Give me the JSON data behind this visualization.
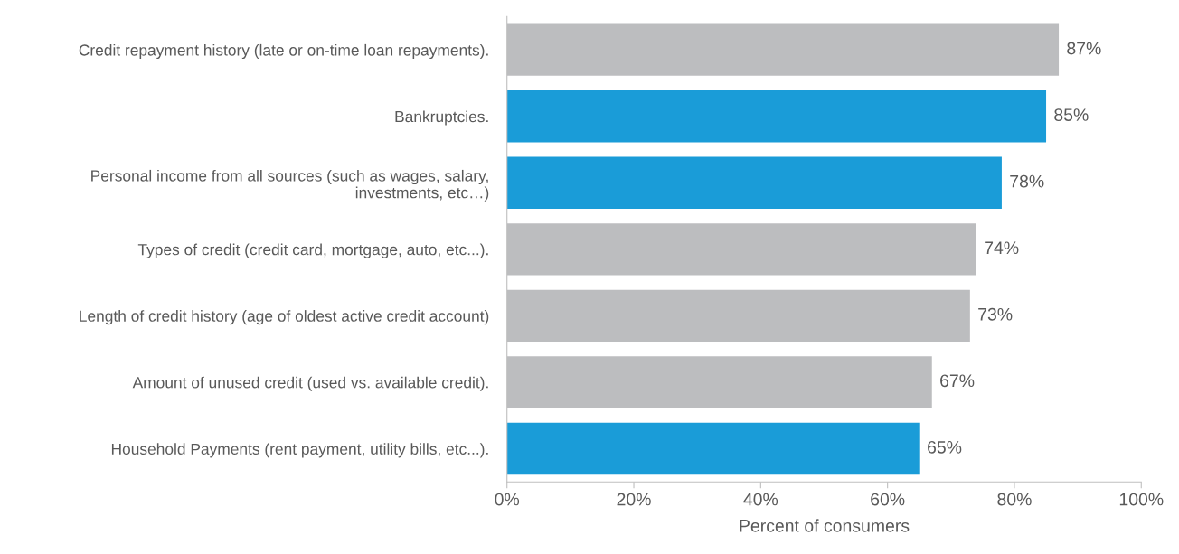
{
  "chart_data": {
    "type": "bar",
    "orientation": "horizontal",
    "xlabel": "Percent of consumers",
    "categories": [
      "Credit repayment history (late or on-time loan repayments).",
      "Bankruptcies.",
      "Personal income from all sources (such as wages, salary,\ninvestments, etc…)",
      "Types of credit (credit card, mortgage, auto, etc...).",
      "Length of credit history (age of oldest active credit account)",
      "Amount of unused credit (used vs. available credit).",
      "Household Payments (rent payment, utility bills, etc...)."
    ],
    "values": [
      87,
      85,
      78,
      74,
      73,
      67,
      65
    ],
    "colors": [
      "#bcbdbf",
      "#1a9cd8",
      "#1a9cd8",
      "#bcbdbf",
      "#bcbdbf",
      "#bcbdbf",
      "#1a9cd8"
    ],
    "value_labels": [
      "87%",
      "85%",
      "78%",
      "74%",
      "73%",
      "67%",
      "65%"
    ],
    "xlim": [
      0,
      100
    ],
    "xticks": [
      {
        "value": 0,
        "label": "0%"
      },
      {
        "value": 20,
        "label": "20%"
      },
      {
        "value": 40,
        "label": "40%"
      },
      {
        "value": 60,
        "label": "60%"
      },
      {
        "value": 80,
        "label": "80%"
      },
      {
        "value": 100,
        "label": "100%"
      }
    ],
    "grid": false
  }
}
